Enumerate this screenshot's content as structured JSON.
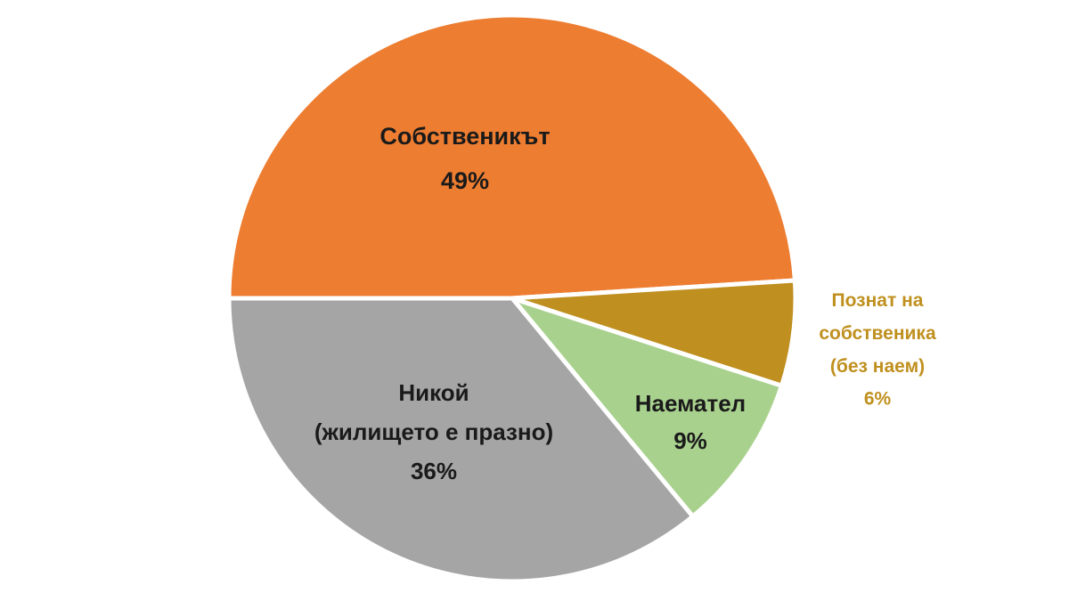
{
  "chart_data": {
    "type": "pie",
    "categories": [
      "Собственикът",
      "Познат на\nсобственика\n(без наем)",
      "Наемател",
      "Никой\n(жилището е празно)"
    ],
    "values": [
      49,
      6,
      9,
      36
    ],
    "value_labels": [
      "49%",
      "6%",
      "9%",
      "36%"
    ],
    "colors": [
      "#ED7D31",
      "#BF8F1F",
      "#A9D18E",
      "#A5A5A5"
    ]
  }
}
